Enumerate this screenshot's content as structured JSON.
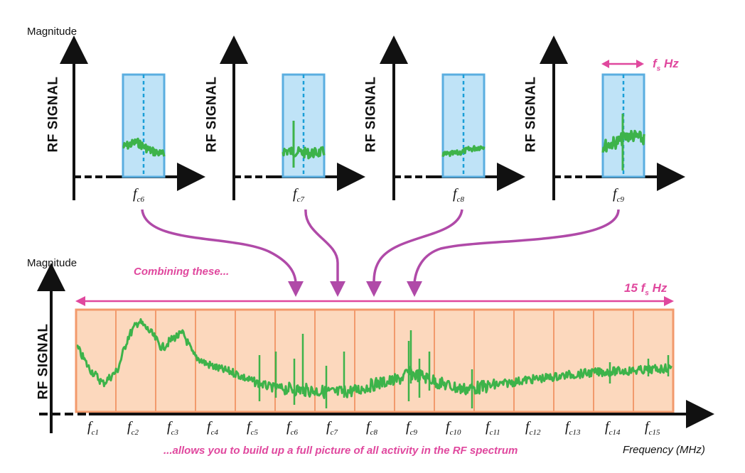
{
  "top_panels": [
    {
      "axis_label": "Magnitude",
      "signal_label": "RF  SIGNAL",
      "fc": {
        "base": "f",
        "sub": "c6"
      }
    },
    {
      "axis_label": "",
      "signal_label": "RF  SIGNAL",
      "fc": {
        "base": "f",
        "sub": "c7"
      }
    },
    {
      "axis_label": "",
      "signal_label": "RF  SIGNAL",
      "fc": {
        "base": "f",
        "sub": "c8"
      }
    },
    {
      "axis_label": "",
      "signal_label": "RF  SIGNAL",
      "fc": {
        "base": "f",
        "sub": "c9"
      }
    }
  ],
  "bandwidth_label": {
    "prefix": "f",
    "sub": "s",
    "suffix": " Hz"
  },
  "bottom": {
    "axis_label": "Magnitude",
    "signal_label": "RF  SIGNAL",
    "combining_text": "Combining these...",
    "span_label": {
      "prefix": "15 f",
      "sub": "s",
      "suffix": " Hz"
    },
    "fc_labels": [
      "c1",
      "c2",
      "c3",
      "c4",
      "c5",
      "c6",
      "c7",
      "c8",
      "c9",
      "c10",
      "c11",
      "c12",
      "c13",
      "c14",
      "c15"
    ],
    "caption": "...allows you to build up a full picture of all activity in the RF spectrum",
    "x_label": "Frequency (MHz)"
  },
  "colors": {
    "signal": "#3db34a",
    "band_fill": "#bfe3f7",
    "band_stroke": "#5aaee0",
    "center_line": "#1a9fd8",
    "spectrum_fill": "#fcd8bd",
    "spectrum_stroke": "#f29a6c",
    "arrow": "#b04aa8",
    "pink": "#e0489e"
  }
}
